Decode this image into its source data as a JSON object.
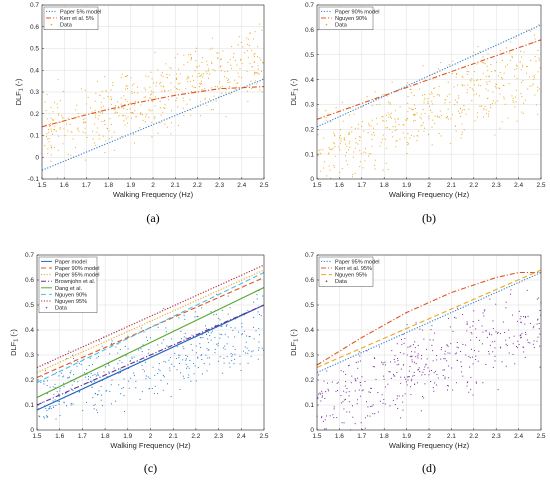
{
  "chart_data": [
    {
      "panel": "a",
      "caption": "(a)",
      "type": "line",
      "xlabel": "Walking Frequency (Hz)",
      "ylabel": "DLF",
      "ylabel_sub": "1",
      "ylabel_unit": " (-)",
      "xlim": [
        1.5,
        2.5
      ],
      "ylim": [
        -0.1,
        0.7
      ],
      "xticks": [
        1.5,
        1.6,
        1.7,
        1.8,
        1.9,
        2,
        2.1,
        2.2,
        2.3,
        2.4,
        2.5
      ],
      "yticks": [
        -0.1,
        0,
        0.1,
        0.2,
        0.3,
        0.4,
        0.5,
        0.6,
        0.7
      ],
      "legend_position": "top-left",
      "series": [
        {
          "name": "Paper 5% model",
          "color": "#2e7fd1",
          "style": "dotted",
          "x": [
            1.5,
            2.5
          ],
          "y": [
            -0.06,
            0.36
          ]
        },
        {
          "name": "Kerr et al. 5%",
          "color": "#e0541f",
          "style": "dashdot",
          "x": [
            1.5,
            1.7,
            1.9,
            2.1,
            2.3,
            2.5
          ],
          "y": [
            0.14,
            0.195,
            0.245,
            0.285,
            0.315,
            0.325
          ]
        },
        {
          "name": "Data",
          "color": "#eda81b",
          "style": "points",
          "scatter": {
            "seed": 11,
            "count": 500,
            "x_range": [
              1.5,
              2.5
            ],
            "trend": [
              0.1,
              0.45
            ],
            "spread": 0.18
          }
        }
      ]
    },
    {
      "panel": "b",
      "caption": "(b)",
      "type": "line",
      "xlabel": "Walking Frequency (Hz)",
      "ylabel": "DLF",
      "ylabel_sub": "1",
      "ylabel_unit": " (-)",
      "xlim": [
        1.5,
        2.5
      ],
      "ylim": [
        0,
        0.7
      ],
      "xticks": [
        1.5,
        1.6,
        1.7,
        1.8,
        1.9,
        2,
        2.1,
        2.2,
        2.3,
        2.4,
        2.5
      ],
      "yticks": [
        0,
        0.1,
        0.2,
        0.3,
        0.4,
        0.5,
        0.6,
        0.7
      ],
      "legend_position": "top-left",
      "series": [
        {
          "name": "Paper 90% model",
          "color": "#2e7fd1",
          "style": "dotted",
          "x": [
            1.5,
            2.5
          ],
          "y": [
            0.21,
            0.62
          ]
        },
        {
          "name": "Nguyen 90%",
          "color": "#e0541f",
          "style": "dashdot",
          "x": [
            1.5,
            2.5
          ],
          "y": [
            0.24,
            0.56
          ]
        },
        {
          "name": "Data",
          "color": "#eda81b",
          "style": "points",
          "scatter": {
            "seed": 23,
            "count": 500,
            "x_range": [
              1.5,
              2.5
            ],
            "trend": [
              0.1,
              0.45
            ],
            "spread": 0.18
          }
        }
      ]
    },
    {
      "panel": "c",
      "caption": "(c)",
      "type": "line",
      "xlabel": "Walking Frequency (Hz)",
      "ylabel": "DLF",
      "ylabel_sub": "1",
      "ylabel_unit": " (-)",
      "xlim": [
        1.5,
        2.5
      ],
      "ylim": [
        0,
        0.7
      ],
      "xticks": [
        1.5,
        1.6,
        1.7,
        1.8,
        1.9,
        2,
        2.1,
        2.2,
        2.3,
        2.4,
        2.5
      ],
      "yticks": [
        0,
        0.1,
        0.2,
        0.3,
        0.4,
        0.5,
        0.6,
        0.7
      ],
      "legend_position": "top-left",
      "series": [
        {
          "name": "Paper model",
          "color": "#1f66c4",
          "style": "solid",
          "x": [
            1.5,
            2.5
          ],
          "y": [
            0.08,
            0.5
          ]
        },
        {
          "name": "Paper 90% model",
          "color": "#e0541f",
          "style": "dashed",
          "x": [
            1.5,
            2.5
          ],
          "y": [
            0.21,
            0.61
          ]
        },
        {
          "name": "Paper 95% model",
          "color": "#eda81b",
          "style": "dotted",
          "x": [
            1.5,
            2.5
          ],
          "y": [
            0.23,
            0.64
          ]
        },
        {
          "name": "Brownjohn et al.",
          "color": "#6b2e8f",
          "style": "dashdot",
          "x": [
            1.5,
            2.5
          ],
          "y": [
            0.1,
            0.5
          ]
        },
        {
          "name": "Dang et al.",
          "color": "#5aa832",
          "style": "solid",
          "x": [
            1.5,
            2.5
          ],
          "y": [
            0.13,
            0.57
          ]
        },
        {
          "name": "Nguyen 90%",
          "color": "#4bbfe8",
          "style": "dashed",
          "x": [
            1.5,
            2.5
          ],
          "y": [
            0.19,
            0.63
          ]
        },
        {
          "name": "Nguyen 95%",
          "color": "#b21f3c",
          "style": "dotted",
          "x": [
            1.5,
            2.5
          ],
          "y": [
            0.25,
            0.66
          ]
        },
        {
          "name": "Data",
          "color": "#2b7bc8",
          "style": "points",
          "scatter": {
            "seed": 37,
            "count": 450,
            "x_range": [
              1.5,
              2.5
            ],
            "trend": [
              0.12,
              0.42
            ],
            "spread": 0.16
          }
        }
      ]
    },
    {
      "panel": "d",
      "caption": "(d)",
      "type": "line",
      "xlabel": "Walking Frequency (Hz)",
      "ylabel": "DLF",
      "ylabel_sub": "1",
      "ylabel_unit": " (-)",
      "xlim": [
        1.5,
        2.5
      ],
      "ylim": [
        0,
        0.7
      ],
      "xticks": [
        1.5,
        1.6,
        1.7,
        1.8,
        1.9,
        2,
        2.1,
        2.2,
        2.3,
        2.4,
        2.5
      ],
      "yticks": [
        0,
        0.1,
        0.2,
        0.3,
        0.4,
        0.5,
        0.6,
        0.7
      ],
      "legend_position": "top-left",
      "series": [
        {
          "name": "Paper 95% model",
          "color": "#2e7fd1",
          "style": "dotted",
          "x": [
            1.5,
            2.5
          ],
          "y": [
            0.23,
            0.63
          ]
        },
        {
          "name": "Kerr et al. 95%",
          "color": "#e0541f",
          "style": "dashdot",
          "x": [
            1.5,
            1.7,
            1.9,
            2.1,
            2.3,
            2.4,
            2.5
          ],
          "y": [
            0.26,
            0.37,
            0.47,
            0.55,
            0.61,
            0.63,
            0.63
          ]
        },
        {
          "name": "Nguyen 95%",
          "color": "#eda81b",
          "style": "dashed",
          "x": [
            1.5,
            2.5
          ],
          "y": [
            0.25,
            0.64
          ]
        },
        {
          "name": "Data",
          "color": "#7b2a9a",
          "style": "points",
          "scatter": {
            "seed": 51,
            "count": 450,
            "x_range": [
              1.5,
              2.5
            ],
            "trend": [
              0.1,
              0.42
            ],
            "spread": 0.17
          }
        }
      ]
    }
  ]
}
